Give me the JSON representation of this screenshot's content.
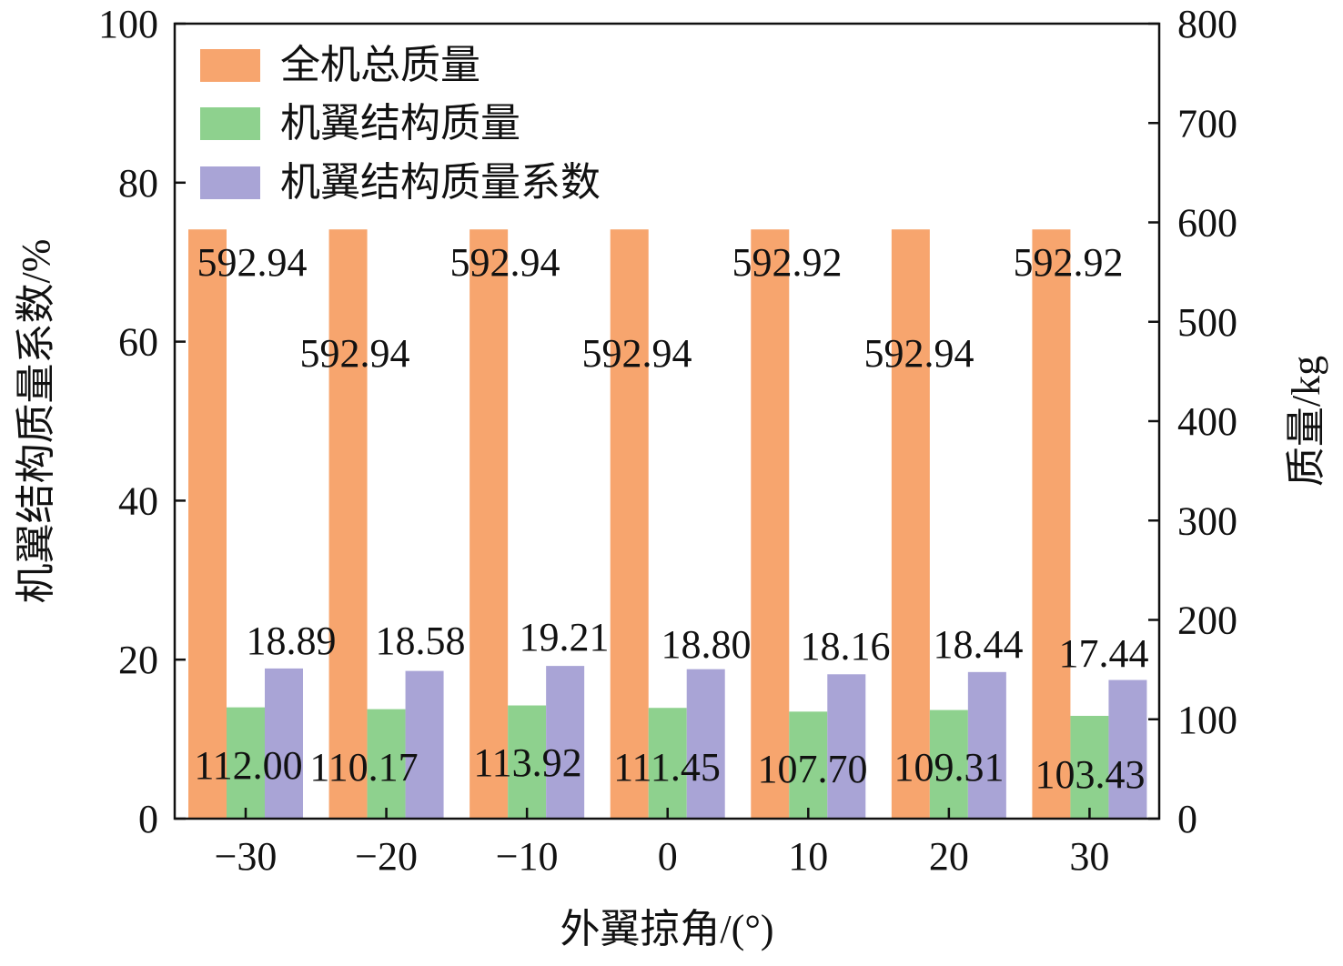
{
  "chart_data": {
    "type": "bar",
    "categories": [
      "−30",
      "−20",
      "−10",
      "0",
      "10",
      "20",
      "30"
    ],
    "xlabel": "外翼掠角/(°)",
    "ylabel_left": "机翼结构质量系数/%",
    "ylabel_right": "质量/kg",
    "ylim_left": [
      0,
      100
    ],
    "ylim_right": [
      0,
      800
    ],
    "yticks_left": [
      "0",
      "20",
      "40",
      "60",
      "80",
      "100"
    ],
    "yticks_right": [
      "0",
      "100",
      "200",
      "300",
      "400",
      "500",
      "600",
      "700",
      "800"
    ],
    "legend_position": "top-left",
    "grid": false,
    "series": [
      {
        "name": "全机总质量",
        "axis": "right",
        "color": "#F7A56E",
        "values": [
          592.94,
          592.94,
          592.94,
          592.94,
          592.92,
          592.94,
          592.92
        ],
        "labels": [
          "592.94",
          "592.94",
          "592.94",
          "592.94",
          "592.92",
          "592.94",
          "592.92"
        ]
      },
      {
        "name": "机翼结构质量",
        "axis": "right",
        "color": "#8ED18E",
        "values": [
          112.0,
          110.17,
          113.92,
          111.45,
          107.7,
          109.31,
          103.43
        ],
        "labels": [
          "112.00",
          "110.17",
          "113.92",
          "111.45",
          "107.70",
          "109.31",
          "103.43"
        ]
      },
      {
        "name": "机翼结构质量系数",
        "axis": "left",
        "color": "#A9A4D6",
        "values": [
          18.89,
          18.58,
          19.21,
          18.8,
          18.16,
          18.44,
          17.44
        ],
        "labels": [
          "18.89",
          "18.58",
          "19.21",
          "18.80",
          "18.16",
          "18.44",
          "17.44"
        ]
      }
    ]
  }
}
